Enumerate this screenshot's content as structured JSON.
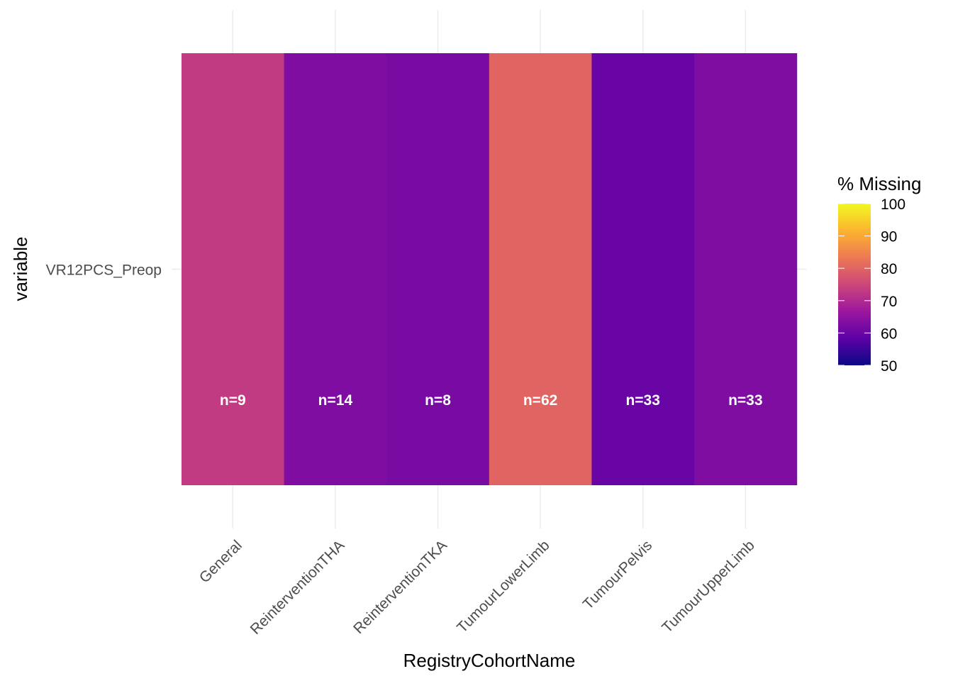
{
  "chart_data": {
    "type": "heatmap",
    "xlabel": "RegistryCohortName",
    "ylabel": "variable",
    "categories": [
      "General",
      "ReinterventionTHA",
      "ReinterventionTKA",
      "TumourLowerLimb",
      "TumourPelvis",
      "TumourUpperLimb"
    ],
    "rows": [
      "VR12PCS_Preop"
    ],
    "values": [
      [
        73,
        63,
        62,
        80,
        60,
        63
      ]
    ],
    "cell_labels": [
      [
        "n=9",
        "n=14",
        "n=8",
        "n=62",
        "n=33",
        "n=33"
      ]
    ],
    "legend": {
      "title": "% Missing",
      "range": [
        50,
        100
      ],
      "ticks": [
        "100",
        "90",
        "80",
        "70",
        "60",
        "50"
      ],
      "placement": "right",
      "palette": [
        "#0d0887",
        "#5c01a6",
        "#9c179e",
        "#cc4778",
        "#ed7953",
        "#fdb42f",
        "#f0f921"
      ]
    },
    "grid": true
  }
}
